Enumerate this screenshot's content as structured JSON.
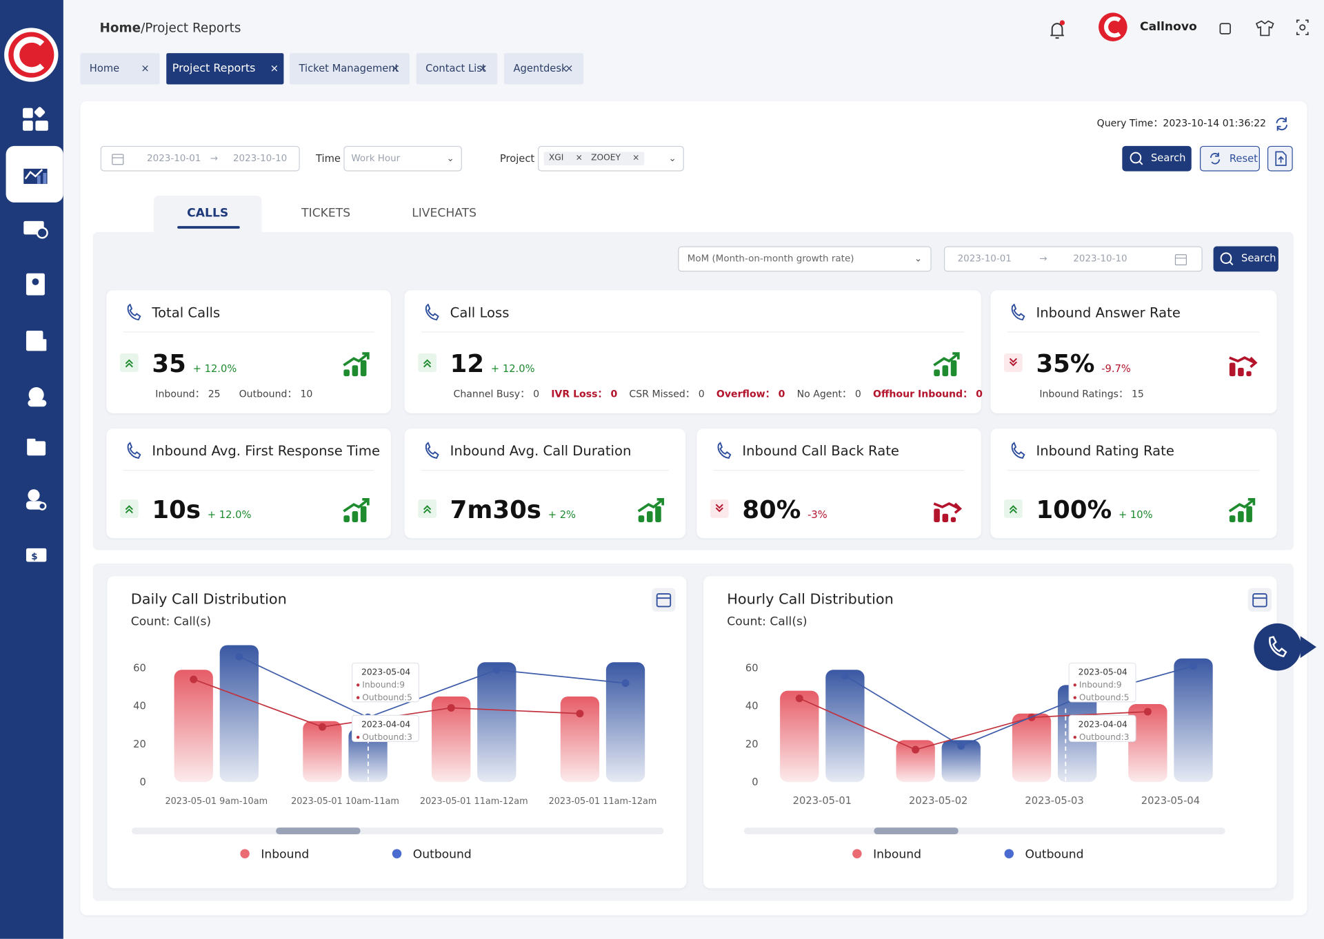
{
  "breadcrumb": {
    "root": "Home",
    "current": "/Project Reports"
  },
  "brand": "Callnovo",
  "tabs": [
    "Home",
    "Project Reports",
    "Ticket Management",
    "Contact List",
    "Agentdesk"
  ],
  "active_tab": 1,
  "query_time": {
    "label": "Query Time：",
    "value": "2023-10-14 01:36:22"
  },
  "filters": {
    "date_start": "2023-10-01",
    "date_end": "2023-10-10",
    "time_label": "Time",
    "time_value": "Work Hour",
    "project_label": "Project",
    "projects": [
      "XGI",
      "ZOOEY"
    ],
    "search": "Search",
    "reset": "Reset"
  },
  "report_tabs": [
    "CALLS",
    "TICKETS",
    "LIVECHATS"
  ],
  "active_report_tab": 0,
  "compare": {
    "mode": "MoM (Month-on-month growth rate)",
    "date_start": "2023-10-01",
    "date_end": "2023-10-10",
    "search": "Search"
  },
  "kpis": [
    {
      "title": "Total Calls",
      "value": "35",
      "change": "+ 12.0%",
      "trend": "up",
      "details": [
        {
          "label": "Inbound：",
          "value": "25",
          "highlight": false
        },
        {
          "label": "Outbound：",
          "value": "10",
          "highlight": false
        }
      ]
    },
    {
      "title": "Call Loss",
      "value": "12",
      "change": "+ 12.0%",
      "trend": "up",
      "details": [
        {
          "label": "Channel Busy：",
          "value": "0",
          "highlight": false
        },
        {
          "label": "IVR Loss：",
          "value": "0",
          "highlight": true
        },
        {
          "label": "CSR Missed：",
          "value": "0",
          "highlight": false
        },
        {
          "label": "Overflow：",
          "value": "0",
          "highlight": true
        },
        {
          "label": "No Agent：",
          "value": "0",
          "highlight": false
        },
        {
          "label": "Offhour Inbound：",
          "value": "0",
          "highlight": true
        }
      ]
    },
    {
      "title": "Inbound Answer Rate",
      "value": "35%",
      "change": "-9.7%",
      "trend": "down",
      "details": [
        {
          "label": "Inbound Ratings：",
          "value": "15",
          "highlight": false
        }
      ]
    },
    {
      "title": "Inbound Avg. First Response Time",
      "value": "10s",
      "change": "+ 12.0%",
      "trend": "up",
      "details": []
    },
    {
      "title": "Inbound Avg. Call Duration",
      "value": "7m30s",
      "change": "+ 2%",
      "trend": "up",
      "details": []
    },
    {
      "title": "Inbound Call Back Rate",
      "value": "80%",
      "change": "-3%",
      "trend": "down",
      "details": []
    },
    {
      "title": "Inbound Rating Rate",
      "value": "100%",
      "change": "+ 10%",
      "trend": "up",
      "details": []
    }
  ],
  "charts": [
    {
      "type": "bar",
      "title": "Daily Call Distribution",
      "subtitle": "Count: Call(s)",
      "categories": [
        "2023-05-01  9am-10am",
        "2023-05-01  10am-11am",
        "2023-05-01  11am-12am",
        "2023-05-01  11am-12am"
      ],
      "series": [
        {
          "name": "Inbound",
          "color": "#e5545f",
          "values": [
            59,
            32,
            45,
            45
          ],
          "trend": [
            54,
            29,
            39,
            36
          ]
        },
        {
          "name": "Outbound",
          "color": "#2f4f9e",
          "values": [
            72,
            28,
            63,
            63
          ],
          "trend": [
            66,
            34,
            59,
            52
          ]
        }
      ],
      "ylim": [
        0,
        75
      ],
      "yticks": [
        0,
        20,
        40,
        60
      ],
      "grid": false,
      "tooltips": [
        {
          "title": "2023-05-04",
          "items": [
            "Inbound:9",
            "Outbound:5"
          ]
        },
        {
          "title": "2023-04-04",
          "items": [
            "Outbound:3"
          ]
        }
      ]
    },
    {
      "type": "bar",
      "title": "Hourly Call Distribution",
      "subtitle": "Count: Call(s)",
      "categories": [
        "2023-05-01",
        "2023-05-02",
        "2023-05-03",
        "2023-05-04"
      ],
      "series": [
        {
          "name": "Inbound",
          "color": "#e5545f",
          "values": [
            48,
            22,
            36,
            41
          ],
          "trend": [
            44,
            17,
            34,
            37
          ]
        },
        {
          "name": "Outbound",
          "color": "#2f4f9e",
          "values": [
            59,
            22,
            51,
            65
          ],
          "trend": [
            56,
            19,
            44,
            61
          ]
        }
      ],
      "ylim": [
        0,
        75
      ],
      "yticks": [
        0,
        20,
        40,
        60
      ],
      "grid": false,
      "tooltips": [
        {
          "title": "2023-05-04",
          "items": [
            "Inbound:9",
            "Outbound:5"
          ]
        },
        {
          "title": "2023-04-04",
          "items": [
            "Outbound:3"
          ]
        }
      ]
    }
  ]
}
